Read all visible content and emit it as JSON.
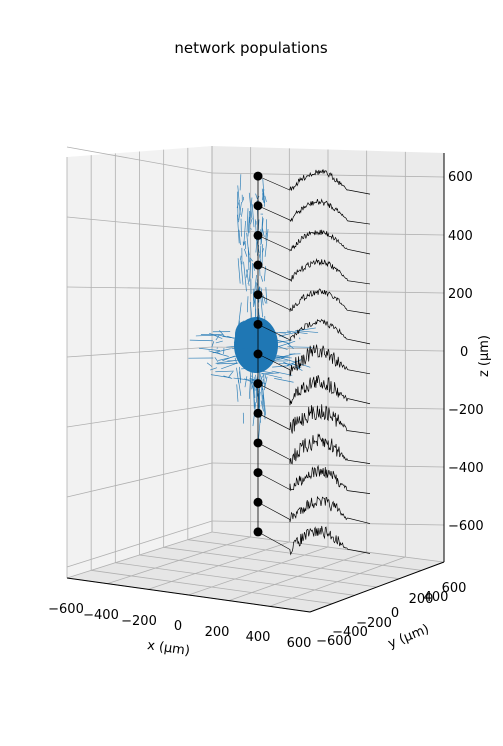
{
  "chart_data": {
    "type": "scatter",
    "projection": "3d",
    "title": "network populations",
    "xlabel": "x (μm)",
    "ylabel": "y (μm)",
    "zlabel": "z (μm)",
    "xlim": [
      -600,
      600
    ],
    "ylim": [
      -600,
      600
    ],
    "zlim": [
      -700,
      660
    ],
    "grid": true,
    "x_ticks": [
      "−600",
      "−400",
      "−200",
      "0",
      "200",
      "400",
      "600"
    ],
    "y_ticks": [
      "−600",
      "−400",
      "−200",
      "0",
      "200",
      "400",
      "600"
    ],
    "z_ticks": [
      "−600",
      "−400",
      "−200",
      "0",
      "200",
      "400",
      "600"
    ],
    "electrode_contacts": {
      "color": "#000000",
      "x": [
        0,
        0,
        0,
        0,
        0,
        0,
        0,
        0,
        0,
        0,
        0,
        0,
        0
      ],
      "y": [
        0,
        0,
        0,
        0,
        0,
        0,
        0,
        0,
        0,
        0,
        0,
        0,
        0
      ],
      "z": [
        600,
        500,
        400,
        300,
        200,
        100,
        0,
        -100,
        -200,
        -300,
        -400,
        -500,
        -600
      ]
    },
    "cell_population": {
      "color": "#1f77b4",
      "center": [
        0,
        0,
        0
      ]
    },
    "traces": {
      "color": "#000000",
      "count": 13
    }
  }
}
